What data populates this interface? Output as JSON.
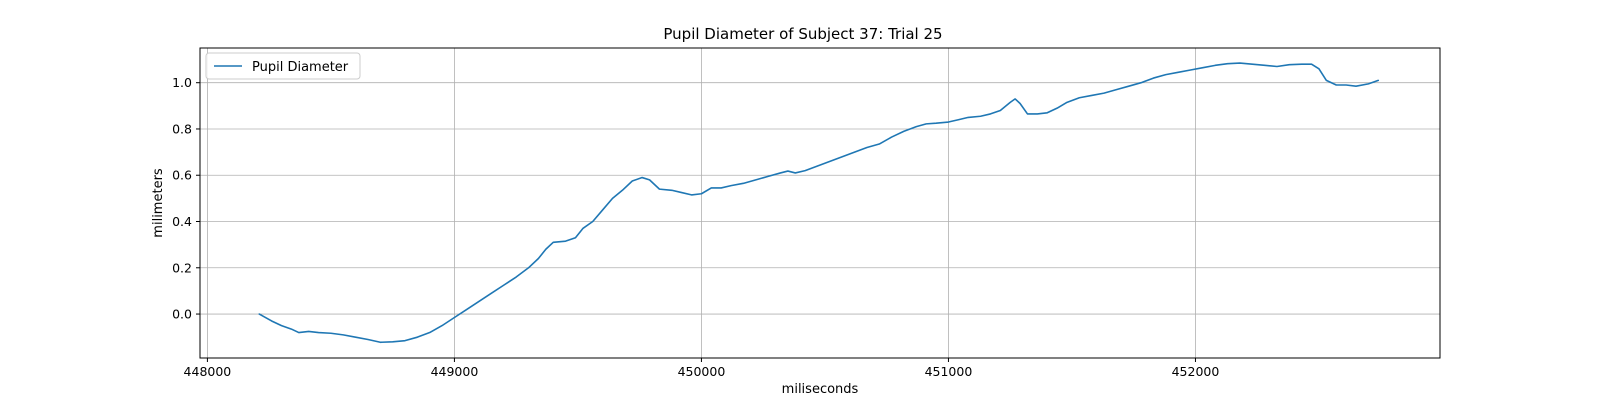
{
  "chart_data": {
    "type": "line",
    "title": "Pupil Diameter of Subject 37: Trial 25",
    "xlabel": "miliseconds",
    "ylabel": "milimeters",
    "xlim": [
      447970,
      452990
    ],
    "ylim": [
      -0.19,
      1.15
    ],
    "x_ticks": [
      448000,
      449000,
      450000,
      451000,
      452000
    ],
    "y_ticks": [
      0.0,
      0.2,
      0.4,
      0.6,
      0.8,
      1.0
    ],
    "x_tick_labels": [
      "448000",
      "449000",
      "450000",
      "451000",
      "452000"
    ],
    "y_tick_labels": [
      "0.0",
      "0.2",
      "0.4",
      "0.6",
      "0.8",
      "1.0"
    ],
    "grid": true,
    "legend": {
      "entries": [
        "Pupil Diameter"
      ],
      "location": "upper-left"
    },
    "series": [
      {
        "name": "Pupil Diameter",
        "color": "#1f77b4",
        "points": [
          [
            448210,
            0.0
          ],
          [
            448260,
            -0.03
          ],
          [
            448300,
            -0.05
          ],
          [
            448340,
            -0.065
          ],
          [
            448370,
            -0.08
          ],
          [
            448410,
            -0.075
          ],
          [
            448450,
            -0.08
          ],
          [
            448500,
            -0.083
          ],
          [
            448550,
            -0.09
          ],
          [
            448600,
            -0.1
          ],
          [
            448650,
            -0.11
          ],
          [
            448700,
            -0.122
          ],
          [
            448750,
            -0.12
          ],
          [
            448800,
            -0.115
          ],
          [
            448850,
            -0.1
          ],
          [
            448900,
            -0.08
          ],
          [
            448950,
            -0.05
          ],
          [
            449000,
            -0.015
          ],
          [
            449050,
            0.02
          ],
          [
            449100,
            0.055
          ],
          [
            449150,
            0.09
          ],
          [
            449200,
            0.125
          ],
          [
            449250,
            0.16
          ],
          [
            449300,
            0.2
          ],
          [
            449340,
            0.24
          ],
          [
            449370,
            0.28
          ],
          [
            449400,
            0.31
          ],
          [
            449450,
            0.315
          ],
          [
            449490,
            0.33
          ],
          [
            449520,
            0.37
          ],
          [
            449560,
            0.4
          ],
          [
            449600,
            0.45
          ],
          [
            449640,
            0.5
          ],
          [
            449680,
            0.535
          ],
          [
            449720,
            0.575
          ],
          [
            449760,
            0.59
          ],
          [
            449790,
            0.58
          ],
          [
            449830,
            0.54
          ],
          [
            449880,
            0.535
          ],
          [
            449920,
            0.525
          ],
          [
            449960,
            0.515
          ],
          [
            450000,
            0.52
          ],
          [
            450040,
            0.545
          ],
          [
            450080,
            0.545
          ],
          [
            450120,
            0.555
          ],
          [
            450170,
            0.565
          ],
          [
            450220,
            0.58
          ],
          [
            450270,
            0.595
          ],
          [
            450320,
            0.61
          ],
          [
            450350,
            0.618
          ],
          [
            450380,
            0.61
          ],
          [
            450420,
            0.62
          ],
          [
            450470,
            0.64
          ],
          [
            450520,
            0.66
          ],
          [
            450570,
            0.68
          ],
          [
            450620,
            0.7
          ],
          [
            450670,
            0.72
          ],
          [
            450720,
            0.735
          ],
          [
            450770,
            0.765
          ],
          [
            450820,
            0.79
          ],
          [
            450870,
            0.81
          ],
          [
            450910,
            0.822
          ],
          [
            450950,
            0.825
          ],
          [
            451000,
            0.83
          ],
          [
            451040,
            0.84
          ],
          [
            451080,
            0.85
          ],
          [
            451130,
            0.855
          ],
          [
            451170,
            0.865
          ],
          [
            451210,
            0.88
          ],
          [
            451250,
            0.915
          ],
          [
            451270,
            0.93
          ],
          [
            451290,
            0.91
          ],
          [
            451320,
            0.865
          ],
          [
            451360,
            0.865
          ],
          [
            451400,
            0.87
          ],
          [
            451440,
            0.89
          ],
          [
            451480,
            0.915
          ],
          [
            451530,
            0.935
          ],
          [
            451580,
            0.945
          ],
          [
            451630,
            0.955
          ],
          [
            451680,
            0.97
          ],
          [
            451730,
            0.985
          ],
          [
            451780,
            1.0
          ],
          [
            451830,
            1.02
          ],
          [
            451880,
            1.035
          ],
          [
            451930,
            1.045
          ],
          [
            451980,
            1.055
          ],
          [
            452030,
            1.065
          ],
          [
            452080,
            1.075
          ],
          [
            452130,
            1.082
          ],
          [
            452180,
            1.085
          ],
          [
            452230,
            1.08
          ],
          [
            452280,
            1.075
          ],
          [
            452330,
            1.07
          ],
          [
            452380,
            1.078
          ],
          [
            452430,
            1.08
          ],
          [
            452470,
            1.08
          ],
          [
            452500,
            1.06
          ],
          [
            452530,
            1.01
          ],
          [
            452570,
            0.99
          ],
          [
            452610,
            0.99
          ],
          [
            452650,
            0.985
          ],
          [
            452700,
            0.995
          ],
          [
            452740,
            1.01
          ]
        ]
      }
    ]
  }
}
